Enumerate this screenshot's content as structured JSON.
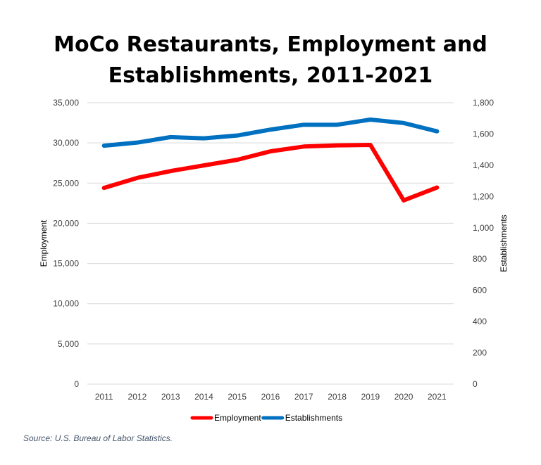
{
  "chart_data": {
    "type": "line",
    "title": "MoCo Restaurants, Employment and Establishments, 2011-2021",
    "categories": [
      "2011",
      "2012",
      "2013",
      "2014",
      "2015",
      "2016",
      "2017",
      "2018",
      "2019",
      "2020",
      "2021"
    ],
    "series": [
      {
        "name": "Employment",
        "axis": "left",
        "color": "#ff0000",
        "values": [
          24400,
          25650,
          26500,
          27200,
          27900,
          28950,
          29550,
          29700,
          29750,
          22850,
          24450
        ]
      },
      {
        "name": "Establishments",
        "axis": "right",
        "color": "#0070c0",
        "values": [
          1525,
          1545,
          1580,
          1572,
          1590,
          1628,
          1659,
          1659,
          1692,
          1670,
          1617
        ]
      }
    ],
    "ylabel": "Employment",
    "y2label": "Establishments",
    "ylim": [
      0,
      35000
    ],
    "y2lim": [
      0,
      1800
    ],
    "yticks": [
      "0",
      "5,000",
      "10,000",
      "15,000",
      "20,000",
      "25,000",
      "30,000",
      "35,000"
    ],
    "y2ticks": [
      "0",
      "200",
      "400",
      "600",
      "800",
      "1,000",
      "1,200",
      "1,400",
      "1,600",
      "1,800"
    ],
    "grid": true,
    "legend": "bottom"
  },
  "source": "Source: U.S. Bureau of Labor Statistics."
}
